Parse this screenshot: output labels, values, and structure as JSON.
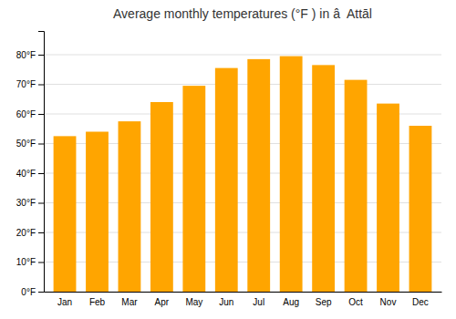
{
  "chart_data": {
    "type": "bar",
    "title": "Average monthly temperatures (°F ) in â  Attāl",
    "categories": [
      "Jan",
      "Feb",
      "Mar",
      "Apr",
      "May",
      "Jun",
      "Jul",
      "Aug",
      "Sep",
      "Oct",
      "Nov",
      "Dec"
    ],
    "values": [
      52.5,
      54.0,
      57.5,
      64.0,
      69.5,
      75.5,
      78.5,
      79.5,
      76.5,
      71.5,
      63.5,
      56.0
    ],
    "color": "#FFA500",
    "ylim": [
      0,
      88
    ],
    "yticks": [
      {
        "value": 0,
        "label": "0°F"
      },
      {
        "value": 10,
        "label": "10°F"
      },
      {
        "value": 20,
        "label": "20°F"
      },
      {
        "value": 30,
        "label": "30°F"
      },
      {
        "value": 40,
        "label": "40°F"
      },
      {
        "value": 50,
        "label": "50°F"
      },
      {
        "value": 60,
        "label": "60°F"
      },
      {
        "value": 70,
        "label": "70°F"
      },
      {
        "value": 80,
        "label": "80°F"
      }
    ],
    "grid": true
  }
}
